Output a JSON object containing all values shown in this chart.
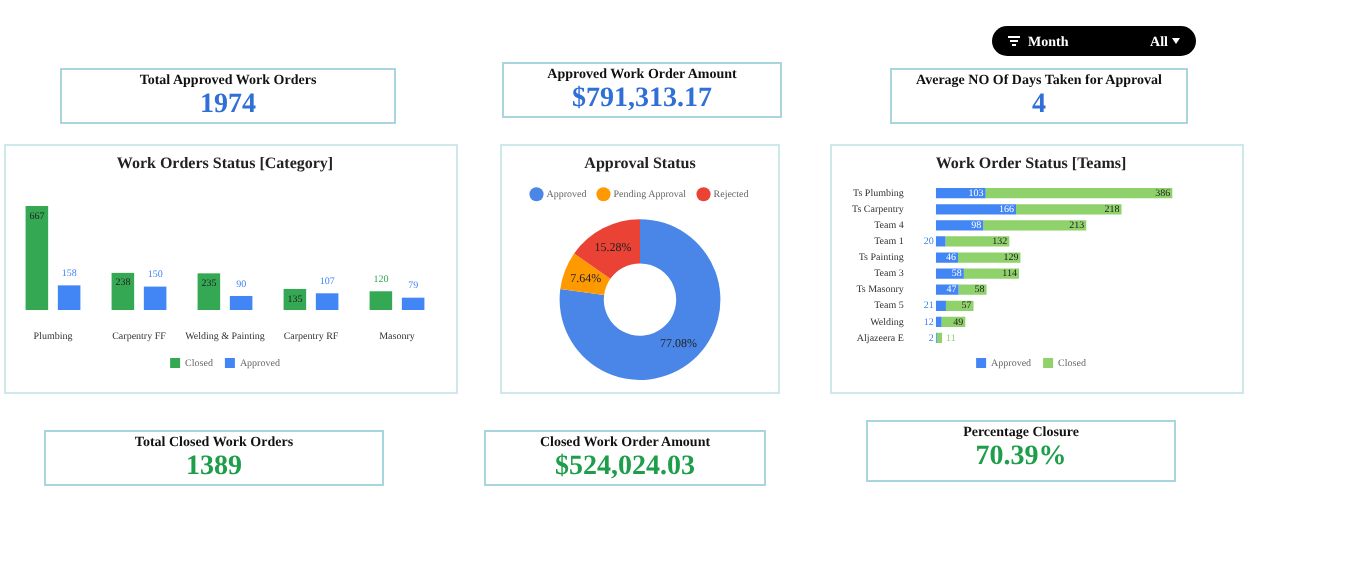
{
  "chart_data": [
    {
      "type": "other",
      "title": "Total Approved Work Orders",
      "annotations": [
        "1974"
      ],
      "color": "#2f6fd6"
    },
    {
      "type": "other",
      "title": "Approved Work Order Amount",
      "annotations": [
        "$791,313.17"
      ],
      "color": "#2f6fd6"
    },
    {
      "type": "other",
      "title": "Average NO Of Days Taken for Approval",
      "annotations": [
        "4"
      ],
      "color": "#2f6fd6"
    },
    {
      "type": "other",
      "title": "Month",
      "annotations": [
        "All"
      ],
      "color": "#000000"
    },
    {
      "type": "bar",
      "title": "Work Orders Status [Category]",
      "categories": [
        "Plumbing",
        "Carpentry FF",
        "Welding & Painting",
        "Carpentry RF",
        "Masonry"
      ],
      "series": [
        {
          "name": "Closed",
          "color": "#34a853",
          "values": [
            667,
            238,
            235,
            135,
            120
          ]
        },
        {
          "name": "Approved",
          "color": "#4285f4",
          "values": [
            158,
            150,
            90,
            107,
            79
          ]
        }
      ],
      "data_labels": true,
      "legend": "bottom",
      "tick_labels": "x",
      "grid": false
    },
    {
      "type": "donut",
      "title": "Approval Status",
      "categories": [
        "Approved",
        "Pending Approval",
        "Rejected"
      ],
      "values": [
        77.08,
        7.64,
        15.28
      ],
      "colors": [
        "#4a86e8",
        "#ff9900",
        "#ea4335"
      ],
      "value_labels": [
        "77.08%",
        "7.64%",
        "15.28%"
      ],
      "legend": "top"
    },
    {
      "type": "bar",
      "title": "Work Order Status [Teams]",
      "orientation": "horizontal",
      "stacked": true,
      "categories": [
        "Ts Plumbing",
        "Ts Carpentry",
        "Team 4",
        "Team 1",
        "Ts Painting",
        "Team 3",
        "Ts Masonry",
        "Team 5",
        "Welding",
        "Aljazeera E"
      ],
      "series": [
        {
          "name": "Approved",
          "color": "#4285f4",
          "values": [
            103,
            166,
            98,
            20,
            46,
            58,
            47,
            21,
            12,
            2
          ]
        },
        {
          "name": "Closed",
          "color": "#8fd16a",
          "values": [
            386,
            218,
            213,
            132,
            129,
            114,
            58,
            57,
            49,
            11
          ]
        }
      ],
      "data_labels": true,
      "legend": "bottom",
      "tick_labels": "y",
      "grid": false
    },
    {
      "type": "other",
      "title": "Total Closed Work Orders",
      "annotations": [
        "1389"
      ],
      "color": "#1e9e4a"
    },
    {
      "type": "other",
      "title": "Closed Work Order Amount",
      "annotations": [
        "$524,024.03"
      ],
      "color": "#1e9e4a"
    },
    {
      "type": "other",
      "title": "Percentage Closure",
      "annotations": [
        "70.39%"
      ],
      "color": "#1e9e4a"
    }
  ]
}
